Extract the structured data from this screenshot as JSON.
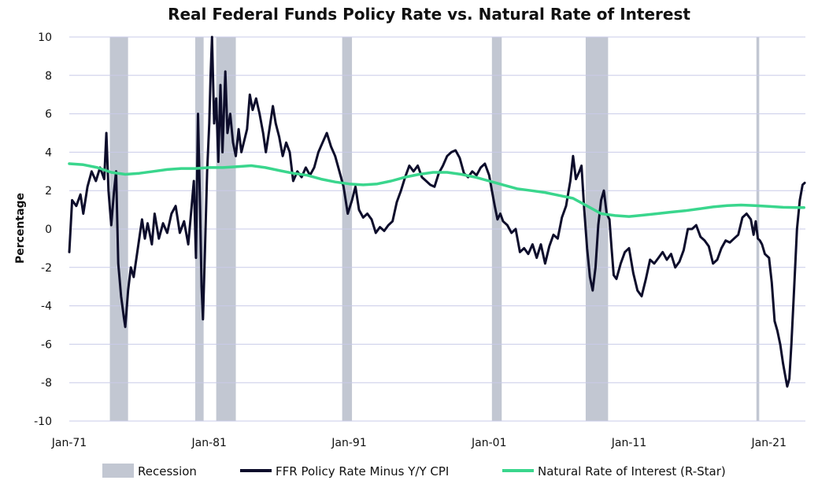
{
  "chart_data": {
    "type": "line",
    "title": "Real Federal Funds Policy Rate vs. Natural Rate of Interest",
    "xlabel": "",
    "ylabel": "Percentage",
    "x_range": [
      1971.0,
      2023.6
    ],
    "ylim": [
      -10,
      10
    ],
    "y_ticks": [
      -10,
      -8,
      -6,
      -4,
      -2,
      0,
      2,
      4,
      6,
      8,
      10
    ],
    "x_ticks": [
      {
        "label": "Jan-71",
        "x": 1971.0
      },
      {
        "label": "Jan-81",
        "x": 1981.0
      },
      {
        "label": "Jan-91",
        "x": 1991.0
      },
      {
        "label": "Jan-01",
        "x": 2001.0
      },
      {
        "label": "Jan-11",
        "x": 2011.0
      },
      {
        "label": "Jan-21",
        "x": 2021.0
      }
    ],
    "grid": true,
    "legend_position": "bottom",
    "recessions": [
      [
        1973.9,
        1975.2
      ],
      [
        1980.0,
        1980.6
      ],
      [
        1981.5,
        1982.9
      ],
      [
        1990.5,
        1991.2
      ],
      [
        2001.2,
        2001.9
      ],
      [
        2007.9,
        2009.5
      ],
      [
        2020.1,
        2020.3
      ]
    ],
    "series": [
      {
        "name": "FFR Policy Rate Minus Y/Y CPI",
        "color": "#0d0d2b",
        "points": [
          [
            1971.0,
            -1.2
          ],
          [
            1971.2,
            1.5
          ],
          [
            1971.5,
            1.2
          ],
          [
            1971.8,
            1.8
          ],
          [
            1972.0,
            0.8
          ],
          [
            1972.3,
            2.2
          ],
          [
            1972.6,
            3.0
          ],
          [
            1972.9,
            2.5
          ],
          [
            1973.2,
            3.2
          ],
          [
            1973.5,
            2.6
          ],
          [
            1973.65,
            5.0
          ],
          [
            1973.8,
            2.0
          ],
          [
            1974.0,
            0.2
          ],
          [
            1974.2,
            2.0
          ],
          [
            1974.35,
            3.0
          ],
          [
            1974.5,
            -1.8
          ],
          [
            1974.7,
            -3.5
          ],
          [
            1974.9,
            -4.6
          ],
          [
            1975.0,
            -5.1
          ],
          [
            1975.2,
            -3.2
          ],
          [
            1975.4,
            -2.0
          ],
          [
            1975.6,
            -2.5
          ],
          [
            1975.9,
            -1.0
          ],
          [
            1976.2,
            0.5
          ],
          [
            1976.4,
            -0.5
          ],
          [
            1976.6,
            0.3
          ],
          [
            1976.9,
            -0.8
          ],
          [
            1977.1,
            0.8
          ],
          [
            1977.4,
            -0.5
          ],
          [
            1977.7,
            0.3
          ],
          [
            1978.0,
            -0.2
          ],
          [
            1978.3,
            0.8
          ],
          [
            1978.6,
            1.2
          ],
          [
            1978.9,
            -0.2
          ],
          [
            1979.2,
            0.4
          ],
          [
            1979.5,
            -0.8
          ],
          [
            1979.7,
            0.8
          ],
          [
            1979.9,
            2.5
          ],
          [
            1980.05,
            -1.5
          ],
          [
            1980.2,
            6.0
          ],
          [
            1980.35,
            1.0
          ],
          [
            1980.45,
            -3.0
          ],
          [
            1980.55,
            -4.7
          ],
          [
            1980.7,
            -1.0
          ],
          [
            1980.85,
            3.0
          ],
          [
            1981.0,
            5.5
          ],
          [
            1981.1,
            8.0
          ],
          [
            1981.2,
            10.0
          ],
          [
            1981.35,
            5.5
          ],
          [
            1981.5,
            6.8
          ],
          [
            1981.65,
            3.5
          ],
          [
            1981.8,
            7.5
          ],
          [
            1981.95,
            4.0
          ],
          [
            1982.15,
            8.2
          ],
          [
            1982.3,
            5.0
          ],
          [
            1982.5,
            6.0
          ],
          [
            1982.7,
            4.5
          ],
          [
            1982.9,
            3.8
          ],
          [
            1983.1,
            5.2
          ],
          [
            1983.3,
            4.0
          ],
          [
            1983.5,
            4.6
          ],
          [
            1983.7,
            5.2
          ],
          [
            1983.9,
            7.0
          ],
          [
            1984.1,
            6.2
          ],
          [
            1984.35,
            6.8
          ],
          [
            1984.6,
            6.0
          ],
          [
            1984.85,
            5.0
          ],
          [
            1985.05,
            4.0
          ],
          [
            1985.3,
            5.2
          ],
          [
            1985.55,
            6.4
          ],
          [
            1985.75,
            5.5
          ],
          [
            1986.0,
            4.8
          ],
          [
            1986.25,
            3.8
          ],
          [
            1986.5,
            4.5
          ],
          [
            1986.75,
            4.0
          ],
          [
            1987.0,
            2.5
          ],
          [
            1987.3,
            3.0
          ],
          [
            1987.6,
            2.7
          ],
          [
            1987.9,
            3.2
          ],
          [
            1988.2,
            2.8
          ],
          [
            1988.5,
            3.2
          ],
          [
            1988.8,
            4.0
          ],
          [
            1989.1,
            4.5
          ],
          [
            1989.4,
            5.0
          ],
          [
            1989.7,
            4.3
          ],
          [
            1990.0,
            3.8
          ],
          [
            1990.3,
            3.0
          ],
          [
            1990.6,
            2.2
          ],
          [
            1990.9,
            0.8
          ],
          [
            1991.2,
            1.5
          ],
          [
            1991.45,
            2.2
          ],
          [
            1991.7,
            1.0
          ],
          [
            1992.0,
            0.6
          ],
          [
            1992.3,
            0.8
          ],
          [
            1992.6,
            0.5
          ],
          [
            1992.9,
            -0.2
          ],
          [
            1993.2,
            0.1
          ],
          [
            1993.5,
            -0.1
          ],
          [
            1993.8,
            0.2
          ],
          [
            1994.1,
            0.4
          ],
          [
            1994.4,
            1.4
          ],
          [
            1994.7,
            2.0
          ],
          [
            1995.0,
            2.7
          ],
          [
            1995.3,
            3.3
          ],
          [
            1995.6,
            3.0
          ],
          [
            1995.9,
            3.3
          ],
          [
            1996.2,
            2.7
          ],
          [
            1996.5,
            2.5
          ],
          [
            1996.8,
            2.3
          ],
          [
            1997.1,
            2.2
          ],
          [
            1997.4,
            2.9
          ],
          [
            1997.7,
            3.3
          ],
          [
            1998.0,
            3.8
          ],
          [
            1998.3,
            4.0
          ],
          [
            1998.6,
            4.1
          ],
          [
            1998.9,
            3.7
          ],
          [
            1999.2,
            2.9
          ],
          [
            1999.5,
            2.7
          ],
          [
            1999.8,
            3.0
          ],
          [
            2000.1,
            2.8
          ],
          [
            2000.4,
            3.2
          ],
          [
            2000.7,
            3.4
          ],
          [
            2001.0,
            2.8
          ],
          [
            2001.2,
            2.0
          ],
          [
            2001.4,
            1.2
          ],
          [
            2001.6,
            0.5
          ],
          [
            2001.8,
            0.8
          ],
          [
            2002.0,
            0.4
          ],
          [
            2002.3,
            0.2
          ],
          [
            2002.6,
            -0.2
          ],
          [
            2002.9,
            0.0
          ],
          [
            2003.2,
            -1.2
          ],
          [
            2003.5,
            -1.0
          ],
          [
            2003.8,
            -1.3
          ],
          [
            2004.1,
            -0.8
          ],
          [
            2004.4,
            -1.5
          ],
          [
            2004.7,
            -0.8
          ],
          [
            2005.0,
            -1.8
          ],
          [
            2005.3,
            -0.9
          ],
          [
            2005.6,
            -0.3
          ],
          [
            2005.9,
            -0.5
          ],
          [
            2006.2,
            0.6
          ],
          [
            2006.5,
            1.2
          ],
          [
            2006.8,
            2.5
          ],
          [
            2007.0,
            3.8
          ],
          [
            2007.2,
            2.6
          ],
          [
            2007.45,
            3.0
          ],
          [
            2007.6,
            3.3
          ],
          [
            2007.8,
            1.0
          ],
          [
            2008.0,
            -1.0
          ],
          [
            2008.2,
            -2.5
          ],
          [
            2008.4,
            -3.2
          ],
          [
            2008.6,
            -2.0
          ],
          [
            2008.8,
            0.2
          ],
          [
            2009.0,
            1.5
          ],
          [
            2009.2,
            2.0
          ],
          [
            2009.4,
            0.8
          ],
          [
            2009.6,
            0.5
          ],
          [
            2009.75,
            -1.0
          ],
          [
            2009.9,
            -2.4
          ],
          [
            2010.1,
            -2.6
          ],
          [
            2010.4,
            -1.8
          ],
          [
            2010.7,
            -1.2
          ],
          [
            2011.0,
            -1.0
          ],
          [
            2011.3,
            -2.3
          ],
          [
            2011.6,
            -3.2
          ],
          [
            2011.9,
            -3.5
          ],
          [
            2012.2,
            -2.6
          ],
          [
            2012.5,
            -1.6
          ],
          [
            2012.8,
            -1.8
          ],
          [
            2013.1,
            -1.5
          ],
          [
            2013.4,
            -1.2
          ],
          [
            2013.7,
            -1.6
          ],
          [
            2014.0,
            -1.3
          ],
          [
            2014.3,
            -2.0
          ],
          [
            2014.6,
            -1.7
          ],
          [
            2014.9,
            -1.1
          ],
          [
            2015.2,
            0.0
          ],
          [
            2015.5,
            0.0
          ],
          [
            2015.8,
            0.2
          ],
          [
            2016.1,
            -0.4
          ],
          [
            2016.4,
            -0.6
          ],
          [
            2016.7,
            -0.9
          ],
          [
            2017.0,
            -1.8
          ],
          [
            2017.3,
            -1.6
          ],
          [
            2017.6,
            -1.0
          ],
          [
            2017.9,
            -0.6
          ],
          [
            2018.2,
            -0.7
          ],
          [
            2018.5,
            -0.5
          ],
          [
            2018.8,
            -0.3
          ],
          [
            2019.1,
            0.6
          ],
          [
            2019.4,
            0.8
          ],
          [
            2019.7,
            0.5
          ],
          [
            2019.9,
            -0.3
          ],
          [
            2020.05,
            0.4
          ],
          [
            2020.2,
            -0.5
          ],
          [
            2020.35,
            -0.6
          ],
          [
            2020.5,
            -0.8
          ],
          [
            2020.7,
            -1.3
          ],
          [
            2021.0,
            -1.5
          ],
          [
            2021.2,
            -2.8
          ],
          [
            2021.4,
            -4.8
          ],
          [
            2021.6,
            -5.3
          ],
          [
            2021.8,
            -6.0
          ],
          [
            2022.0,
            -7.0
          ],
          [
            2022.15,
            -7.6
          ],
          [
            2022.3,
            -8.2
          ],
          [
            2022.45,
            -7.8
          ],
          [
            2022.6,
            -6.0
          ],
          [
            2022.8,
            -3.0
          ],
          [
            2023.0,
            0.0
          ],
          [
            2023.2,
            1.5
          ],
          [
            2023.4,
            2.3
          ],
          [
            2023.55,
            2.4
          ]
        ]
      },
      {
        "name": "Natural Rate of Interest (R-Star)",
        "color": "#3ad68d",
        "points": [
          [
            1971.0,
            3.4
          ],
          [
            1972.0,
            3.35
          ],
          [
            1973.0,
            3.2
          ],
          [
            1974.0,
            2.95
          ],
          [
            1975.0,
            2.85
          ],
          [
            1976.0,
            2.9
          ],
          [
            1977.0,
            3.0
          ],
          [
            1978.0,
            3.1
          ],
          [
            1979.0,
            3.15
          ],
          [
            1980.0,
            3.15
          ],
          [
            1981.0,
            3.2
          ],
          [
            1982.0,
            3.2
          ],
          [
            1983.0,
            3.25
          ],
          [
            1984.0,
            3.3
          ],
          [
            1985.0,
            3.2
          ],
          [
            1986.0,
            3.05
          ],
          [
            1987.0,
            2.9
          ],
          [
            1988.0,
            2.8
          ],
          [
            1989.0,
            2.6
          ],
          [
            1990.0,
            2.45
          ],
          [
            1991.0,
            2.35
          ],
          [
            1992.0,
            2.3
          ],
          [
            1993.0,
            2.35
          ],
          [
            1994.0,
            2.5
          ],
          [
            1995.0,
            2.7
          ],
          [
            1996.0,
            2.85
          ],
          [
            1997.0,
            2.95
          ],
          [
            1998.0,
            2.95
          ],
          [
            1999.0,
            2.85
          ],
          [
            2000.0,
            2.7
          ],
          [
            2001.0,
            2.5
          ],
          [
            2002.0,
            2.3
          ],
          [
            2003.0,
            2.1
          ],
          [
            2004.0,
            2.0
          ],
          [
            2005.0,
            1.9
          ],
          [
            2006.0,
            1.75
          ],
          [
            2007.0,
            1.6
          ],
          [
            2008.0,
            1.2
          ],
          [
            2009.0,
            0.8
          ],
          [
            2010.0,
            0.7
          ],
          [
            2011.0,
            0.65
          ],
          [
            2012.0,
            0.72
          ],
          [
            2013.0,
            0.8
          ],
          [
            2014.0,
            0.88
          ],
          [
            2015.0,
            0.95
          ],
          [
            2016.0,
            1.05
          ],
          [
            2017.0,
            1.15
          ],
          [
            2018.0,
            1.22
          ],
          [
            2019.0,
            1.25
          ],
          [
            2020.0,
            1.22
          ],
          [
            2021.0,
            1.18
          ],
          [
            2022.0,
            1.13
          ],
          [
            2023.0,
            1.12
          ],
          [
            2023.5,
            1.12
          ]
        ]
      }
    ],
    "legend": [
      {
        "label": "Recession",
        "kind": "patch",
        "color": "#c2c7d2"
      },
      {
        "label": "FFR Policy Rate Minus Y/Y CPI",
        "kind": "line",
        "color": "#0d0d2b"
      },
      {
        "label": "Natural Rate of Interest (R-Star)",
        "kind": "line",
        "color": "#3ad68d"
      }
    ],
    "colors": {
      "grid": "#c9cbe8",
      "recession": "#c2c7d2"
    }
  }
}
